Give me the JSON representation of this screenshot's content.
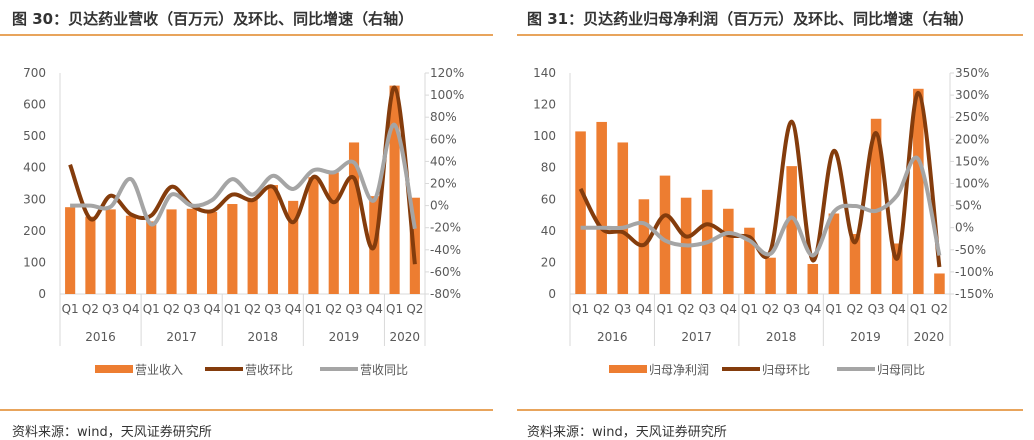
{
  "charts_panel": [
    {
      "title": "图 30：贝达药业营收（百万元）及环比、同比增速（右轴）",
      "source": "资料来源：wind，天风证券研究所"
    },
    {
      "title": "图 31：贝达药业归母净利润（百万元）及环比、同比增速（右轴）",
      "source": "资料来源：wind，天风证券研究所"
    }
  ],
  "colors": {
    "bar": "#ed7d31",
    "qoq": "#843c0c",
    "yoy": "#a5a5a5",
    "rule": "#e8a45c"
  },
  "chart_data": [
    {
      "type": "bar+line",
      "categories": [
        "Q1",
        "Q2",
        "Q3",
        "Q4",
        "Q1",
        "Q2",
        "Q3",
        "Q4",
        "Q1",
        "Q2",
        "Q3",
        "Q4",
        "Q1",
        "Q2",
        "Q3",
        "Q4",
        "Q1",
        "Q2"
      ],
      "years": [
        "2016",
        "2017",
        "2018",
        "2019",
        "2020"
      ],
      "ylim": [
        0,
        700
      ],
      "yticks": [
        "0",
        "100",
        "200",
        "300",
        "400",
        "500",
        "600",
        "700"
      ],
      "y2lim": [
        -80,
        120
      ],
      "y2ticks": [
        "-80%",
        "-60%",
        "-40%",
        "-20%",
        "0%",
        "20%",
        "40%",
        "60%",
        "80%",
        "100%",
        "120%"
      ],
      "series": [
        {
          "name": "营业收入",
          "type": "bar",
          "axis": "left",
          "values": [
            275,
            245,
            268,
            248,
            230,
            268,
            270,
            260,
            285,
            300,
            345,
            295,
            370,
            385,
            480,
            310,
            660,
            305
          ]
        },
        {
          "name": "营收环比",
          "type": "line",
          "axis": "right",
          "values": [
            37,
            -12,
            9,
            -8,
            -9,
            17,
            0,
            -5,
            10,
            5,
            17,
            -15,
            26,
            3,
            25,
            -37,
            107,
            -53
          ]
        },
        {
          "name": "营收同比",
          "type": "line",
          "axis": "right",
          "values": [
            0,
            0,
            -1,
            24,
            -17,
            10,
            0,
            5,
            24,
            10,
            27,
            15,
            32,
            30,
            39,
            5,
            73,
            -21
          ]
        }
      ],
      "legend": "bottom"
    },
    {
      "type": "bar+line",
      "categories": [
        "Q1",
        "Q2",
        "Q3",
        "Q4",
        "Q1",
        "Q2",
        "Q3",
        "Q4",
        "Q1",
        "Q2",
        "Q3",
        "Q4",
        "Q1",
        "Q2",
        "Q3",
        "Q4",
        "Q1",
        "Q2"
      ],
      "years": [
        "2016",
        "2017",
        "2018",
        "2019",
        "2020"
      ],
      "ylim": [
        0,
        140
      ],
      "yticks": [
        "0",
        "20",
        "40",
        "60",
        "80",
        "100",
        "120",
        "140"
      ],
      "y2lim": [
        -150,
        350
      ],
      "y2ticks": [
        "-150%",
        "-100%",
        "-50%",
        "0%",
        "50%",
        "100%",
        "150%",
        "200%",
        "250%",
        "300%",
        "350%"
      ],
      "series": [
        {
          "name": "归母净利润",
          "type": "bar",
          "axis": "left",
          "values": [
            103,
            109,
            96,
            60,
            75,
            61,
            66,
            54,
            42,
            23,
            81,
            19,
            51,
            38,
            111,
            32,
            130,
            13
          ]
        },
        {
          "name": "归母环比",
          "type": "line",
          "axis": "right",
          "values": [
            88,
            -2,
            -10,
            -39,
            28,
            -20,
            8,
            -17,
            -21,
            -52,
            240,
            -74,
            174,
            -33,
            214,
            -70,
            305,
            -89
          ]
        },
        {
          "name": "归母同比",
          "type": "line",
          "axis": "right",
          "values": [
            0,
            0,
            0,
            10,
            -29,
            -40,
            -33,
            -12,
            -29,
            -59,
            23,
            -63,
            36,
            49,
            38,
            73,
            155,
            -63
          ]
        }
      ],
      "legend": "bottom"
    }
  ]
}
